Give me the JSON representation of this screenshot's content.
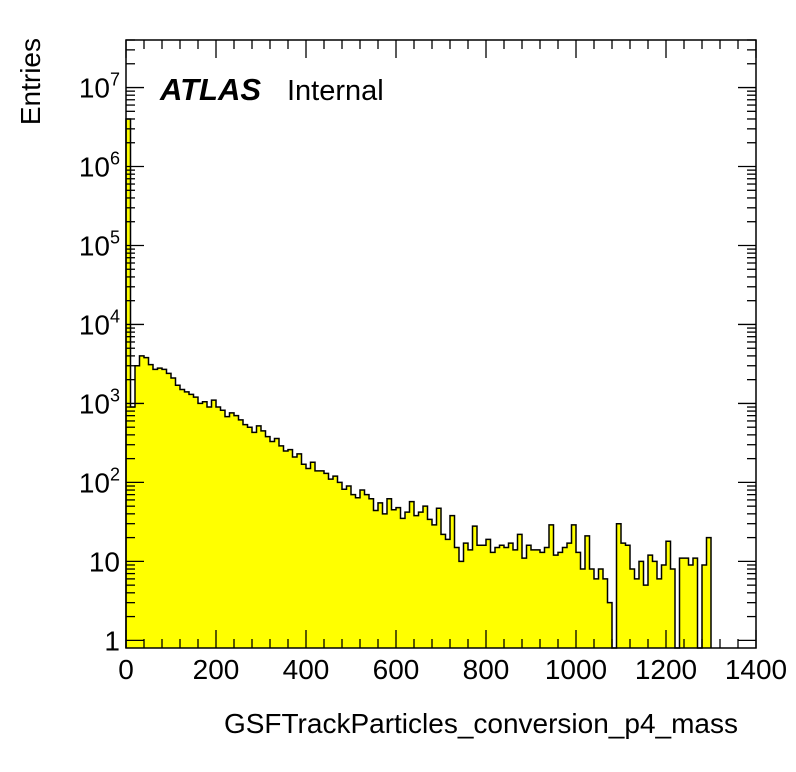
{
  "chart_data": {
    "type": "bar",
    "style": "histogram",
    "fill_color": "#ffff00",
    "line_color": "#000000",
    "xlabel": "GSFTrackParticles_conversion_p4_mass",
    "ylabel": "Entries",
    "xlim": [
      0,
      1400
    ],
    "ylim": [
      0.8,
      40000000
    ],
    "yscale": "log",
    "grid": false,
    "legend": "none",
    "bin_width": 10,
    "x_ticks": [
      "0",
      "200",
      "400",
      "600",
      "800",
      "1000",
      "1200",
      "1400"
    ],
    "y_ticks": [
      {
        "base": "1",
        "exp": ""
      },
      {
        "base": "10",
        "exp": ""
      },
      {
        "base": "10",
        "exp": "2"
      },
      {
        "base": "10",
        "exp": "3"
      },
      {
        "base": "10",
        "exp": "4"
      },
      {
        "base": "10",
        "exp": "5"
      },
      {
        "base": "10",
        "exp": "6"
      },
      {
        "base": "10",
        "exp": "7"
      }
    ],
    "label_atlas": "ATLAS",
    "label_status": "Internal",
    "values": [
      4000000,
      900,
      3000,
      4000,
      3800,
      3100,
      2700,
      2800,
      2700,
      2400,
      2100,
      1700,
      1500,
      1400,
      1300,
      1200,
      1000,
      1050,
      900,
      1100,
      900,
      820,
      680,
      760,
      700,
      620,
      540,
      500,
      430,
      520,
      450,
      380,
      330,
      360,
      290,
      250,
      260,
      210,
      230,
      170,
      150,
      180,
      140,
      140,
      130,
      110,
      120,
      100,
      82,
      90,
      70,
      64,
      80,
      70,
      62,
      44,
      55,
      40,
      62,
      45,
      48,
      35,
      42,
      57,
      38,
      42,
      50,
      34,
      29,
      47,
      22,
      19,
      38,
      15,
      10,
      17,
      14,
      28,
      16,
      16,
      19,
      13,
      15,
      16,
      15,
      17,
      14,
      22,
      11,
      16,
      14,
      14,
      13,
      15,
      29,
      12,
      13,
      15,
      17,
      29,
      13,
      8,
      21,
      8,
      6,
      8,
      6,
      3,
      0.01,
      30,
      17,
      16,
      8,
      6,
      10,
      5,
      12,
      10,
      6,
      9,
      18,
      8,
      0.01,
      11,
      11,
      9,
      11,
      0.01,
      9,
      20
    ]
  }
}
